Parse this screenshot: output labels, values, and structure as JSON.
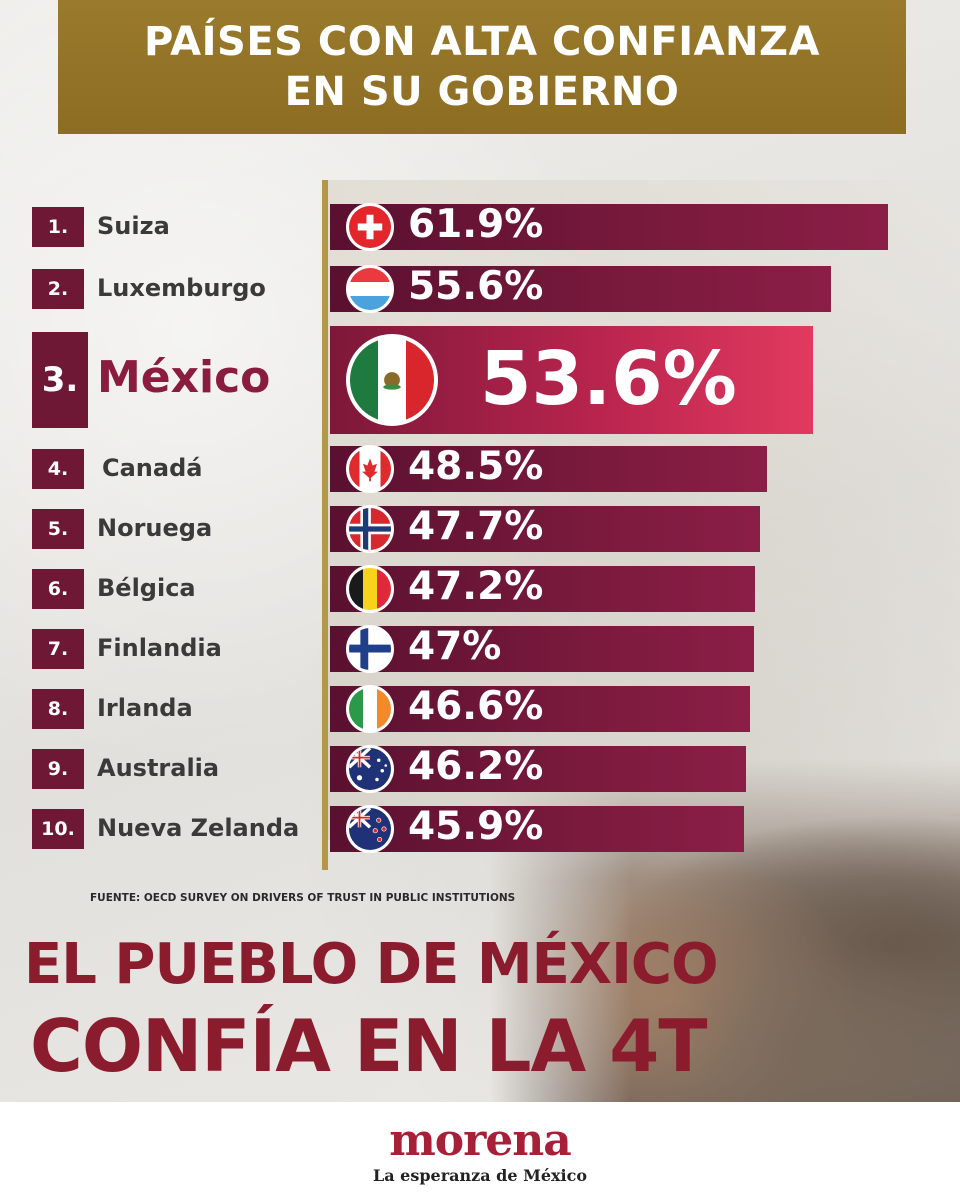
{
  "title": {
    "line1": "PAÍSES CON ALTA CONFIANZA",
    "line2": "EN SU GOBIERNO"
  },
  "chart_data": {
    "type": "bar",
    "orientation": "horizontal",
    "categories": [
      "Suiza",
      "Luxemburgo",
      "México",
      "Canadá",
      "Noruega",
      "Bélgica",
      "Finlandia",
      "Irlanda",
      "Australia",
      "Nueva Zelanda"
    ],
    "ranks": [
      "1.",
      "2.",
      "3.",
      "4.",
      "5.",
      "6.",
      "7.",
      "8.",
      "9.",
      "10."
    ],
    "values": [
      61.9,
      55.6,
      53.6,
      48.5,
      47.7,
      47.2,
      47,
      46.6,
      46.2,
      45.9
    ],
    "labels": [
      "61.9%",
      "55.6%",
      "53.6%",
      "48.5%",
      "47.7%",
      "47.2%",
      "47%",
      "46.6%",
      "46.2%",
      "45.9%"
    ],
    "flags": [
      "switzerland-flag-icon",
      "luxembourg-flag-icon",
      "mexico-flag-icon",
      "canada-flag-icon",
      "norway-flag-icon",
      "belgium-flag-icon",
      "finland-flag-icon",
      "ireland-flag-icon",
      "australia-flag-icon",
      "new-zealand-flag-icon"
    ],
    "highlight": "México",
    "colors": {
      "bar": "#6e1836",
      "highlight_bar": "#e23a5f",
      "axis": "#b59847"
    }
  },
  "source": "FUENTE: OECD SURVEY ON DRIVERS OF TRUST IN PUBLIC INSTITUTIONS",
  "headline": {
    "line1": "EL PUEBLO DE MÉXICO",
    "line2": "CONFÍA EN LA 4T"
  },
  "logo": {
    "brand": "morena",
    "tagline": "La esperanza de México"
  },
  "colors": {
    "title_band": "#8c6d22",
    "headline": "#8a1c2e",
    "brand": "#a81f38"
  }
}
